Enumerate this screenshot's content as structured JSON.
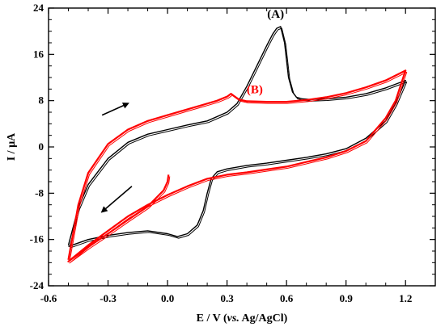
{
  "chart_data": {
    "type": "line",
    "title": "",
    "xlabel_parts": [
      "E / V (",
      "vs.",
      " Ag/AgCl)"
    ],
    "ylabel": "I / µA",
    "xlim": [
      -0.6,
      1.35
    ],
    "ylim": [
      -24,
      24
    ],
    "x_ticks": [
      -0.6,
      -0.3,
      0.0,
      0.3,
      0.6,
      0.9,
      1.2
    ],
    "x_tick_labels": [
      "-0.6",
      "-0.3",
      "0.0",
      "0.3",
      "0.6",
      "0.9",
      "1.2"
    ],
    "y_ticks": [
      -24,
      -16,
      -8,
      0,
      8,
      16,
      24
    ],
    "y_tick_labels": [
      "-24",
      "-16",
      "-8",
      "0",
      "8",
      "16",
      "24"
    ],
    "grid": false,
    "annotations": [
      {
        "text": "(A)",
        "x": 0.545,
        "y": 22.3,
        "color": "#000000"
      },
      {
        "text": "(B)",
        "x": 0.44,
        "y": 9.3,
        "color": "#ff0000"
      }
    ],
    "arrows": [
      {
        "direction": "forward",
        "from": [
          -0.33,
          5.5
        ],
        "to": [
          -0.2,
          7.5
        ]
      },
      {
        "direction": "reverse",
        "from": [
          -0.18,
          -6.8
        ],
        "to": [
          -0.33,
          -11.2
        ]
      }
    ],
    "series": [
      {
        "color": "#000000",
        "x": [
          -0.5,
          -0.45,
          -0.4,
          -0.3,
          -0.2,
          -0.1,
          0.0,
          0.1,
          0.2,
          0.3,
          0.35,
          0.4,
          0.45,
          0.5,
          0.53,
          0.55,
          0.57,
          0.59,
          0.61,
          0.63,
          0.65,
          0.68,
          0.72,
          0.8,
          0.9,
          1.0,
          1.1,
          1.2,
          1.2,
          1.15,
          1.1,
          1.0,
          0.9,
          0.8,
          0.7,
          0.6,
          0.5,
          0.4,
          0.3,
          0.25,
          0.22,
          0.2,
          0.18,
          0.15,
          0.1,
          0.05,
          0.0,
          -0.1,
          -0.2,
          -0.3,
          -0.4,
          -0.5
        ],
        "y": [
          -17.0,
          -10.5,
          -6.5,
          -2.0,
          0.8,
          2.2,
          3.0,
          3.8,
          4.5,
          6.0,
          7.5,
          10.5,
          14.0,
          17.5,
          19.5,
          20.5,
          20.8,
          18.0,
          12.0,
          9.5,
          8.6,
          8.3,
          8.2,
          8.3,
          8.6,
          9.2,
          10.2,
          11.5,
          11.5,
          7.5,
          4.5,
          1.5,
          -0.3,
          -1.2,
          -1.8,
          -2.3,
          -2.8,
          -3.2,
          -3.8,
          -4.3,
          -5.5,
          -8.0,
          -11.0,
          -13.5,
          -15.0,
          -15.5,
          -15.0,
          -14.5,
          -14.8,
          -15.3,
          -16.0,
          -17.2
        ]
      },
      {
        "color": "#ff0000",
        "x": [
          -0.5,
          -0.45,
          -0.4,
          -0.3,
          -0.2,
          -0.1,
          0.0,
          0.1,
          0.2,
          0.25,
          0.3,
          0.32,
          0.34,
          0.36,
          0.4,
          0.5,
          0.6,
          0.7,
          0.8,
          0.9,
          1.0,
          1.1,
          1.2,
          1.2,
          1.15,
          1.1,
          1.0,
          0.9,
          0.8,
          0.7,
          0.6,
          0.5,
          0.4,
          0.3,
          0.2,
          0.1,
          0.0,
          -0.1,
          -0.2,
          -0.3,
          -0.4,
          -0.5,
          -0.4,
          -0.3,
          -0.2,
          -0.1,
          -0.02,
          0.0,
          0.005
        ],
        "y": [
          -19.5,
          -10.0,
          -4.5,
          0.5,
          3.0,
          4.5,
          5.5,
          6.5,
          7.5,
          8.0,
          8.7,
          9.2,
          8.7,
          8.2,
          7.9,
          7.8,
          7.8,
          8.1,
          8.6,
          9.3,
          10.3,
          11.5,
          13.2,
          13.2,
          8.0,
          5.0,
          1.0,
          -0.7,
          -1.8,
          -2.6,
          -3.4,
          -3.9,
          -4.4,
          -4.8,
          -5.5,
          -6.8,
          -8.3,
          -10.0,
          -12.0,
          -14.5,
          -17.0,
          -19.8,
          -17.3,
          -15.0,
          -12.6,
          -10.3,
          -7.5,
          -6.0,
          -4.8
        ]
      }
    ]
  }
}
